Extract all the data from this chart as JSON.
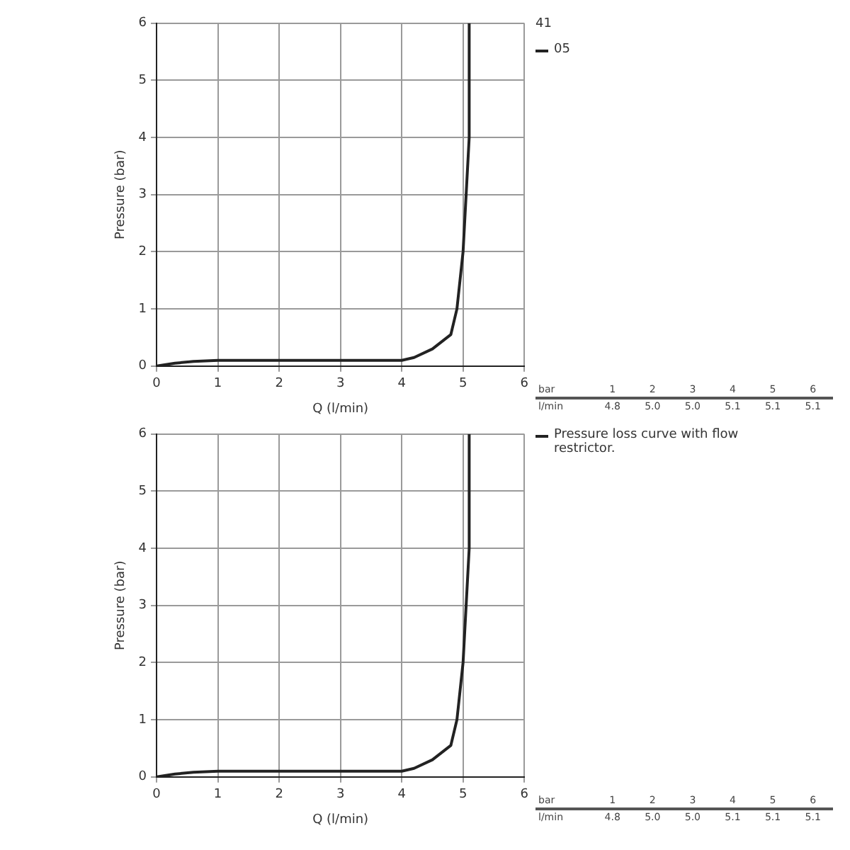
{
  "chart_data": [
    {
      "type": "line",
      "legend_title": "41",
      "xlabel": "Q (l/min)",
      "ylabel": "Pressure (bar)",
      "xlim": [
        0,
        6
      ],
      "ylim": [
        0,
        6
      ],
      "xticks": [
        0,
        1,
        2,
        3,
        4,
        5,
        6
      ],
      "yticks": [
        0,
        1,
        2,
        3,
        4,
        5,
        6
      ],
      "grid": true,
      "legend": "top right",
      "marker": "none",
      "line_style": "solid",
      "series": [
        {
          "name": "05",
          "color": "#222222",
          "x": [
            0,
            0.3,
            0.6,
            1,
            2,
            3,
            4,
            4.2,
            4.5,
            4.8,
            4.9,
            5.0,
            5.05,
            5.1,
            5.1
          ],
          "values": [
            0,
            0.05,
            0.08,
            0.1,
            0.1,
            0.1,
            0.1,
            0.15,
            0.3,
            0.55,
            1,
            2,
            3,
            4,
            6
          ]
        }
      ],
      "annotations": [
        "bar 1 2 3 4 5 6",
        "l/min 4.8 5.0 5.0 5.1 5.1 5.1"
      ]
    },
    {
      "type": "line",
      "xlabel": "Q (l/min)",
      "ylabel": "Pressure (bar)",
      "xlim": [
        0,
        6
      ],
      "ylim": [
        0,
        6
      ],
      "xticks": [
        0,
        1,
        2,
        3,
        4,
        5,
        6
      ],
      "yticks": [
        0,
        1,
        2,
        3,
        4,
        5,
        6
      ],
      "grid": true,
      "legend": "top right",
      "marker": "none",
      "line_style": "solid",
      "series": [
        {
          "name": "Pressure loss curve with flow restrictor.",
          "color": "#222222",
          "x": [
            0,
            0.3,
            0.6,
            1,
            2,
            3,
            4,
            4.2,
            4.5,
            4.8,
            4.9,
            5.0,
            5.05,
            5.1,
            5.1
          ],
          "values": [
            0,
            0.05,
            0.08,
            0.1,
            0.1,
            0.1,
            0.1,
            0.15,
            0.3,
            0.55,
            1,
            2,
            3,
            4,
            6
          ]
        }
      ],
      "annotations": [
        "bar 1 2 3 4 5 6",
        "l/min 4.8 5.0 5.0 5.1 5.1 5.1"
      ]
    }
  ]
}
